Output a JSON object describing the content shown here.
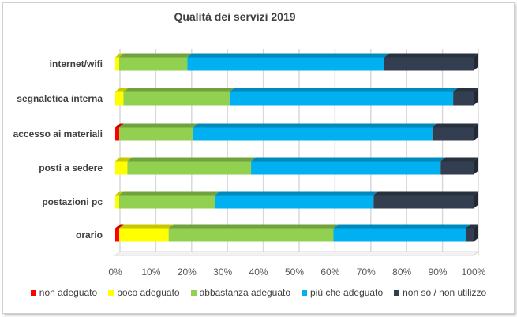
{
  "chart_data": {
    "type": "bar",
    "orientation": "horizontal",
    "stacked": "100%",
    "title": "Qualità dei servizi 2019",
    "categories": [
      "internet/wifi",
      "segnaletica interna",
      "accesso ai materiali",
      "posti a sedere",
      "postazioni pc",
      "orario"
    ],
    "series": [
      {
        "name": "non adeguato",
        "color": "#ff0000",
        "values": [
          0,
          0,
          1.1,
          0,
          0,
          1.1
        ]
      },
      {
        "name": "poco adeguato",
        "color": "#ffff00",
        "values": [
          1.1,
          2.3,
          0,
          3.4,
          1.1,
          13.8
        ]
      },
      {
        "name": "abbastanza adeguato",
        "color": "#92d050",
        "values": [
          19,
          29.6,
          20.7,
          34.5,
          26.8,
          46
        ]
      },
      {
        "name": "più che adeguato",
        "color": "#00b0f0",
        "values": [
          55,
          62.4,
          66.7,
          52.9,
          44.2,
          36.9
        ]
      },
      {
        "name": "non so / non utilizzo",
        "color": "#333f50",
        "values": [
          24.9,
          5.7,
          11.5,
          9.2,
          27.9,
          2.2
        ]
      }
    ],
    "x_ticks": [
      "0%",
      "10%",
      "20%",
      "30%",
      "40%",
      "50%",
      "60%",
      "70%",
      "80%",
      "90%",
      "100%"
    ],
    "xlim": [
      0,
      100
    ],
    "grid": true,
    "legend_position": "bottom"
  }
}
